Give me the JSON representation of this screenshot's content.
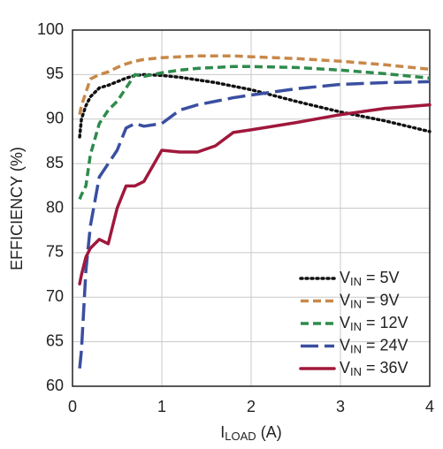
{
  "chart_data": {
    "type": "line",
    "x_label": "ILOAD (A)",
    "y_label": "EFFICIENCY (%)",
    "x": [
      0.08,
      0.1,
      0.15,
      0.2,
      0.3,
      0.4,
      0.5,
      0.6,
      0.7,
      0.8,
      1.0,
      1.2,
      1.4,
      1.6,
      1.8,
      2.0,
      2.5,
      3.0,
      3.5,
      4.0
    ],
    "series": [
      {
        "name": "VIN = 5V",
        "color": "#111111",
        "style": "dotted",
        "values": [
          88,
          90,
          91.5,
          92.5,
          93.5,
          93.8,
          94.2,
          94.6,
          94.9,
          95.0,
          94.9,
          94.7,
          94.4,
          94.1,
          93.7,
          93.3,
          92.0,
          90.8,
          89.8,
          88.6
        ]
      },
      {
        "name": "VIN = 9V",
        "color": "#c8884a",
        "style": "dashed",
        "values": [
          90.5,
          91.5,
          93,
          94.5,
          95,
          95.3,
          95.8,
          96.2,
          96.5,
          96.7,
          96.9,
          97,
          97.1,
          97.1,
          97.1,
          97,
          96.8,
          96.5,
          96.1,
          95.6
        ]
      },
      {
        "name": "VIN = 12V",
        "color": "#2e8b4c",
        "style": "dashed",
        "values": [
          81,
          81.5,
          82.5,
          86,
          89.5,
          91,
          92,
          93.5,
          95,
          94.8,
          95.2,
          95.5,
          95.7,
          95.8,
          95.9,
          95.9,
          95.8,
          95.5,
          95.1,
          94.6
        ]
      },
      {
        "name": "VIN = 24V",
        "color": "#3a4fa0",
        "style": "long-dashed",
        "values": [
          62,
          64,
          73,
          78,
          83.5,
          85,
          86.5,
          89,
          89.5,
          89.2,
          89.5,
          91,
          91.6,
          92,
          92.4,
          92.7,
          93.4,
          93.9,
          94.1,
          94.2
        ]
      },
      {
        "name": "VIN = 36V",
        "color": "#a0183c",
        "style": "solid",
        "values": [
          71.5,
          72.5,
          74.5,
          75.5,
          76.5,
          76,
          80,
          82.5,
          82.5,
          83,
          86.5,
          86.3,
          86.3,
          87,
          88.5,
          88.8,
          89.6,
          90.5,
          91.2,
          91.6
        ]
      }
    ],
    "xlim": [
      0,
      4
    ],
    "xticks": [
      0,
      1,
      2,
      3,
      4
    ],
    "ylim": [
      60,
      100
    ],
    "yticks": [
      60,
      65,
      70,
      75,
      80,
      85,
      90,
      95,
      100
    ],
    "grid": true,
    "legend": "lower-right"
  }
}
